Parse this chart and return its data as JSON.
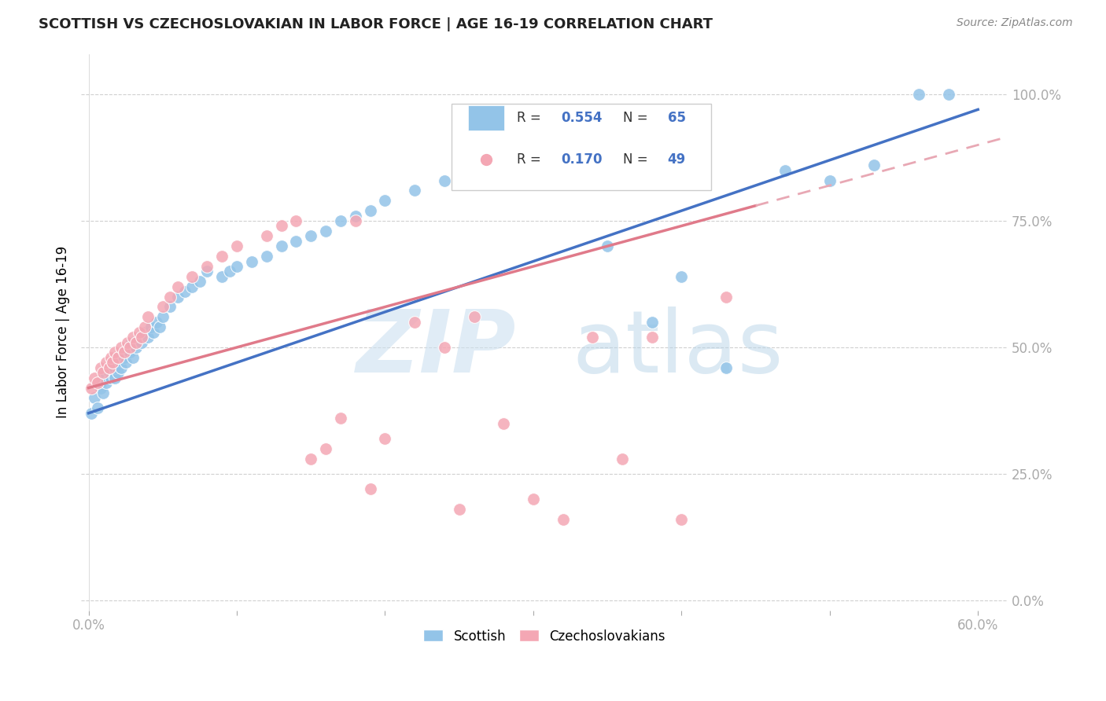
{
  "title": "SCOTTISH VS CZECHOSLOVAKIAN IN LABOR FORCE | AGE 16-19 CORRELATION CHART",
  "source": "Source: ZipAtlas.com",
  "ylabel": "In Labor Force | Age 16-19",
  "xlim": [
    -0.005,
    0.62
  ],
  "ylim": [
    -0.02,
    1.08
  ],
  "yticks": [
    0.0,
    0.25,
    0.5,
    0.75,
    1.0
  ],
  "ytick_labels": [
    "0.0%",
    "25.0%",
    "50.0%",
    "75.0%",
    "100.0%"
  ],
  "xticks": [
    0.0,
    0.1,
    0.2,
    0.3,
    0.4,
    0.5,
    0.6
  ],
  "xtick_labels": [
    "0.0%",
    "",
    "",
    "",
    "",
    "",
    "60.0%"
  ],
  "blue_color": "#93c4e8",
  "pink_color": "#f4a7b4",
  "blue_R": "0.554",
  "blue_N": "65",
  "pink_R": "0.170",
  "pink_N": "49",
  "legend_label_blue": "Scottish",
  "legend_label_pink": "Czechoslovakians",
  "blue_line_color": "#4472c4",
  "pink_line_color": "#e07a8a",
  "pink_dash_color": "#e8a8b4",
  "grid_color": "#d0d0d0",
  "axis_label_color": "#4472c4",
  "blue_line_slope": 1.0,
  "blue_line_intercept": 0.37,
  "pink_line_slope": 0.8,
  "pink_line_intercept": 0.42,
  "scottish_x": [
    0.002,
    0.004,
    0.006,
    0.008,
    0.009,
    0.01,
    0.012,
    0.014,
    0.015,
    0.016,
    0.018,
    0.018,
    0.019,
    0.02,
    0.02,
    0.022,
    0.024,
    0.025,
    0.026,
    0.028,
    0.029,
    0.03,
    0.032,
    0.034,
    0.036,
    0.038,
    0.04,
    0.042,
    0.044,
    0.046,
    0.048,
    0.05,
    0.055,
    0.06,
    0.065,
    0.07,
    0.075,
    0.08,
    0.09,
    0.095,
    0.1,
    0.11,
    0.12,
    0.13,
    0.14,
    0.15,
    0.16,
    0.17,
    0.18,
    0.19,
    0.2,
    0.22,
    0.24,
    0.26,
    0.28,
    0.3,
    0.35,
    0.38,
    0.4,
    0.43,
    0.47,
    0.5,
    0.53,
    0.56,
    0.58
  ],
  "scottish_y": [
    0.37,
    0.4,
    0.38,
    0.42,
    0.44,
    0.41,
    0.43,
    0.45,
    0.44,
    0.46,
    0.44,
    0.46,
    0.47,
    0.45,
    0.48,
    0.46,
    0.48,
    0.47,
    0.5,
    0.49,
    0.51,
    0.48,
    0.5,
    0.52,
    0.51,
    0.53,
    0.52,
    0.54,
    0.53,
    0.55,
    0.54,
    0.56,
    0.58,
    0.6,
    0.61,
    0.62,
    0.63,
    0.65,
    0.64,
    0.65,
    0.66,
    0.67,
    0.68,
    0.7,
    0.71,
    0.72,
    0.73,
    0.75,
    0.76,
    0.77,
    0.79,
    0.81,
    0.83,
    0.85,
    0.87,
    0.89,
    0.7,
    0.55,
    0.64,
    0.46,
    0.85,
    0.83,
    0.86,
    1.0,
    1.0
  ],
  "czech_x": [
    0.002,
    0.004,
    0.006,
    0.008,
    0.01,
    0.012,
    0.014,
    0.015,
    0.016,
    0.018,
    0.02,
    0.022,
    0.024,
    0.026,
    0.028,
    0.03,
    0.032,
    0.034,
    0.036,
    0.038,
    0.04,
    0.05,
    0.055,
    0.06,
    0.07,
    0.08,
    0.09,
    0.1,
    0.12,
    0.13,
    0.14,
    0.15,
    0.16,
    0.17,
    0.18,
    0.19,
    0.2,
    0.22,
    0.24,
    0.25,
    0.26,
    0.28,
    0.3,
    0.32,
    0.34,
    0.36,
    0.38,
    0.4,
    0.43
  ],
  "czech_y": [
    0.42,
    0.44,
    0.43,
    0.46,
    0.45,
    0.47,
    0.46,
    0.48,
    0.47,
    0.49,
    0.48,
    0.5,
    0.49,
    0.51,
    0.5,
    0.52,
    0.51,
    0.53,
    0.52,
    0.54,
    0.56,
    0.58,
    0.6,
    0.62,
    0.64,
    0.66,
    0.68,
    0.7,
    0.72,
    0.74,
    0.75,
    0.28,
    0.3,
    0.36,
    0.75,
    0.22,
    0.32,
    0.55,
    0.5,
    0.18,
    0.56,
    0.35,
    0.2,
    0.16,
    0.52,
    0.28,
    0.52,
    0.16,
    0.6
  ]
}
